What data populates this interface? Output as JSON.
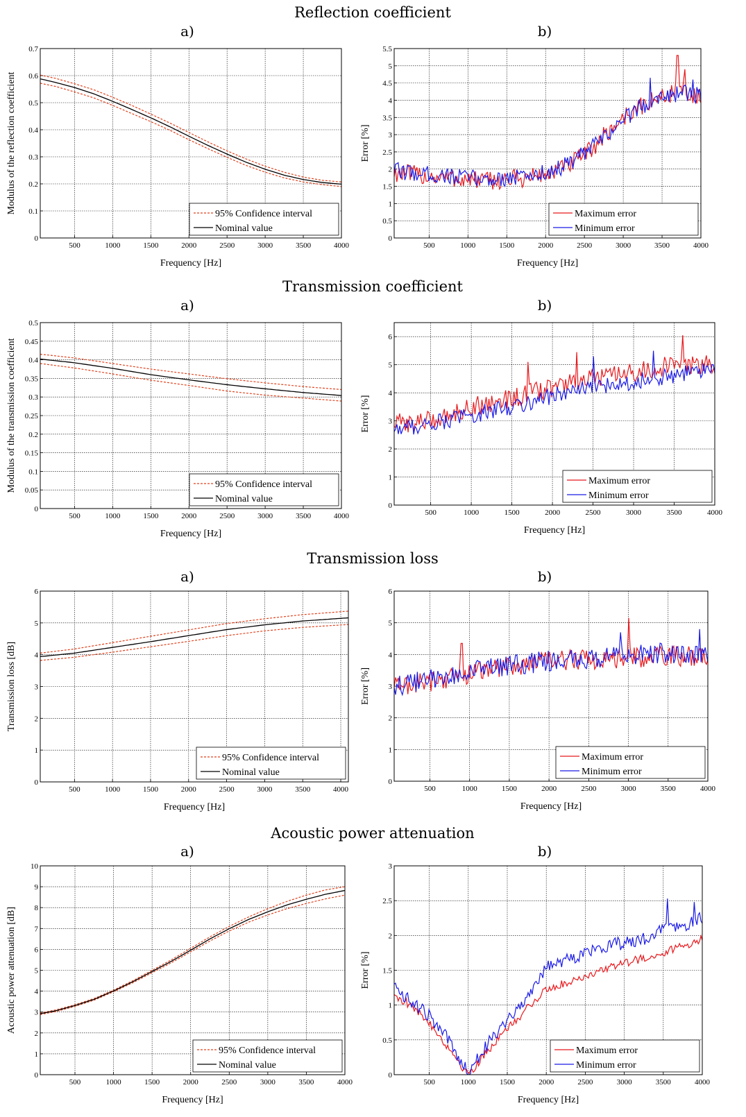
{
  "sections": [
    {
      "title": "Reflection coefficient"
    },
    {
      "title": "Transmission coefficient"
    },
    {
      "title": "Transmission loss"
    },
    {
      "title": "Acoustic power attenuation"
    }
  ],
  "panel_tags": [
    "a)",
    "b)"
  ],
  "colors": {
    "max_error": "#e8181c",
    "min_error": "#1a1ae6",
    "ci": "#e0411c",
    "nominal": "#000000"
  },
  "chart_data": [
    {
      "id": "refl-a",
      "type": "line",
      "xlabel": "Frequency [Hz]",
      "ylabel": "Modulus of the reflection coefficient",
      "xlim": [
        50,
        4000
      ],
      "ylim": [
        0,
        0.7
      ],
      "xticks": [
        500,
        1000,
        1500,
        2000,
        2500,
        3000,
        3500,
        4000
      ],
      "yticks": [
        0,
        0.1,
        0.2,
        0.3,
        0.4,
        0.5,
        0.6,
        0.7
      ],
      "grid": true,
      "legend_position": "bottom-right",
      "series": [
        {
          "name": "95% Confidence interval",
          "style": "dashed-red",
          "x": [
            50,
            250,
            500,
            750,
            1000,
            1250,
            1500,
            1750,
            2000,
            2250,
            2500,
            2750,
            3000,
            3250,
            3500,
            3750,
            4000
          ],
          "y": [
            0.602,
            0.59,
            0.57,
            0.548,
            0.52,
            0.49,
            0.458,
            0.425,
            0.39,
            0.355,
            0.322,
            0.292,
            0.265,
            0.243,
            0.225,
            0.213,
            0.207
          ]
        },
        {
          "name": "",
          "style": "dashed-red",
          "x": [
            50,
            250,
            500,
            750,
            1000,
            1250,
            1500,
            1750,
            2000,
            2250,
            2500,
            2750,
            3000,
            3250,
            3500,
            3750,
            4000
          ],
          "y": [
            0.572,
            0.56,
            0.54,
            0.518,
            0.49,
            0.46,
            0.43,
            0.398,
            0.363,
            0.33,
            0.298,
            0.268,
            0.243,
            0.222,
            0.207,
            0.197,
            0.19
          ]
        },
        {
          "name": "Nominal value",
          "style": "solid-black",
          "x": [
            50,
            250,
            500,
            750,
            1000,
            1250,
            1500,
            1750,
            2000,
            2250,
            2500,
            2750,
            3000,
            3250,
            3500,
            3750,
            4000
          ],
          "y": [
            0.588,
            0.575,
            0.556,
            0.533,
            0.505,
            0.475,
            0.444,
            0.411,
            0.376,
            0.342,
            0.31,
            0.28,
            0.254,
            0.232,
            0.216,
            0.205,
            0.199
          ]
        }
      ]
    },
    {
      "id": "refl-b",
      "type": "line",
      "xlabel": "Frequency [Hz]",
      "ylabel": "Error [%]",
      "xlim": [
        50,
        4000
      ],
      "ylim": [
        0,
        5.5
      ],
      "xticks": [
        500,
        1000,
        1500,
        2000,
        2500,
        3000,
        3500,
        4000
      ],
      "yticks": [
        0,
        0.5,
        1,
        1.5,
        2,
        2.5,
        3,
        3.5,
        4,
        4.5,
        5,
        5.5
      ],
      "grid": true,
      "legend_position": "bottom-right",
      "series": [
        {
          "name": "Maximum error",
          "style": "solid-red",
          "x": [
            50,
            250,
            500,
            750,
            1000,
            1250,
            1500,
            1750,
            2000,
            2250,
            2500,
            2750,
            3000,
            3250,
            3500,
            3750,
            4000
          ],
          "y": [
            1.9,
            1.85,
            1.8,
            1.75,
            1.7,
            1.65,
            1.7,
            1.75,
            1.85,
            2.05,
            2.4,
            2.95,
            3.5,
            3.85,
            4.1,
            4.35,
            4.0
          ],
          "noise": 0.28,
          "spikes": [
            [
              3700,
              5.3
            ],
            [
              3800,
              4.9
            ]
          ]
        },
        {
          "name": "Minimum error",
          "style": "solid-blue",
          "x": [
            50,
            250,
            500,
            750,
            1000,
            1250,
            1500,
            1750,
            2000,
            2250,
            2500,
            2750,
            3000,
            3250,
            3500,
            3750,
            4000
          ],
          "y": [
            1.95,
            1.9,
            1.85,
            1.8,
            1.75,
            1.7,
            1.75,
            1.8,
            1.9,
            2.1,
            2.45,
            2.9,
            3.45,
            3.85,
            4.15,
            4.2,
            4.15
          ],
          "noise": 0.25,
          "spikes": [
            [
              3350,
              4.65
            ],
            [
              3900,
              4.6
            ]
          ]
        }
      ]
    },
    {
      "id": "trans-a",
      "type": "line",
      "xlabel": "Frequency [Hz]",
      "ylabel": "Modulus of the transmission coefficient",
      "xlim": [
        50,
        4000
      ],
      "ylim": [
        0,
        0.5
      ],
      "xticks": [
        500,
        1000,
        1500,
        2000,
        2500,
        3000,
        3500,
        4000
      ],
      "yticks": [
        0,
        0.05,
        0.1,
        0.15,
        0.2,
        0.25,
        0.3,
        0.35,
        0.4,
        0.45,
        0.5
      ],
      "grid": true,
      "legend_position": "bottom-right",
      "series": [
        {
          "name": "95% Confidence interval",
          "style": "dashed-red",
          "x": [
            50,
            500,
            1000,
            1500,
            2000,
            2500,
            3000,
            3500,
            4000
          ],
          "y": [
            0.415,
            0.405,
            0.39,
            0.375,
            0.362,
            0.349,
            0.338,
            0.328,
            0.32
          ]
        },
        {
          "name": "",
          "style": "dashed-red",
          "x": [
            50,
            500,
            1000,
            1500,
            2000,
            2500,
            3000,
            3500,
            4000
          ],
          "y": [
            0.39,
            0.378,
            0.362,
            0.345,
            0.331,
            0.316,
            0.305,
            0.297,
            0.289
          ]
        },
        {
          "name": "Nominal value",
          "style": "solid-black",
          "x": [
            50,
            500,
            1000,
            1500,
            2000,
            2500,
            3000,
            3500,
            4000
          ],
          "y": [
            0.402,
            0.392,
            0.377,
            0.36,
            0.346,
            0.333,
            0.322,
            0.312,
            0.304
          ]
        }
      ]
    },
    {
      "id": "trans-b",
      "type": "line",
      "xlabel": "Frequency [Hz]",
      "ylabel": "Error [%]",
      "xlim": [
        50,
        4000
      ],
      "ylim": [
        0,
        6.5
      ],
      "xticks": [
        500,
        1000,
        1500,
        2000,
        2500,
        3000,
        3500,
        4000
      ],
      "yticks": [
        1,
        2,
        3,
        4,
        5,
        6
      ],
      "ytick_zero": "0",
      "grid": true,
      "legend_position": "bottom-right",
      "series": [
        {
          "name": "Maximum error",
          "style": "solid-red",
          "x": [
            50,
            500,
            1000,
            1500,
            2000,
            2500,
            3000,
            3500,
            4000
          ],
          "y": [
            2.9,
            3.0,
            3.5,
            3.8,
            4.2,
            4.5,
            4.7,
            5.0,
            5.0
          ],
          "noise": 0.35,
          "spikes": [
            [
              1700,
              5.1
            ],
            [
              2300,
              5.45
            ],
            [
              3600,
              6.05
            ]
          ]
        },
        {
          "name": "Minimum error",
          "style": "solid-blue",
          "x": [
            50,
            500,
            1000,
            1500,
            2000,
            2500,
            3000,
            3500,
            4000
          ],
          "y": [
            2.7,
            2.9,
            3.2,
            3.5,
            3.9,
            4.2,
            4.4,
            4.6,
            4.9
          ],
          "noise": 0.3,
          "spikes": [
            [
              2500,
              5.3
            ],
            [
              3250,
              5.5
            ]
          ]
        }
      ]
    },
    {
      "id": "tl-a",
      "type": "line",
      "xlabel": "Frequency [Hz]",
      "ylabel": "Transmission loss [dB]",
      "xlim": [
        50,
        4100
      ],
      "ylim": [
        0,
        6
      ],
      "xticks": [
        500,
        1000,
        1500,
        2000,
        2500,
        3000,
        3500,
        4000
      ],
      "yticks": [
        0,
        1,
        2,
        3,
        4,
        5,
        6
      ],
      "grid": true,
      "legend_position": "bottom-right",
      "series": [
        {
          "name": "95% Confidence interval",
          "style": "dashed-red",
          "x": [
            50,
            500,
            1000,
            1500,
            2000,
            2500,
            3000,
            3500,
            4100
          ],
          "y": [
            4.05,
            4.18,
            4.38,
            4.58,
            4.78,
            4.98,
            5.13,
            5.26,
            5.37
          ]
        },
        {
          "name": "",
          "style": "dashed-red",
          "x": [
            50,
            500,
            1000,
            1500,
            2000,
            2500,
            3000,
            3500,
            4100
          ],
          "y": [
            3.82,
            3.92,
            4.08,
            4.25,
            4.42,
            4.6,
            4.75,
            4.86,
            4.95
          ]
        },
        {
          "name": "Nominal value",
          "style": "solid-black",
          "x": [
            50,
            500,
            1000,
            1500,
            2000,
            2500,
            3000,
            3500,
            4100
          ],
          "y": [
            3.94,
            4.05,
            4.23,
            4.41,
            4.6,
            4.79,
            4.94,
            5.06,
            5.16
          ]
        }
      ]
    },
    {
      "id": "tl-b",
      "type": "line",
      "xlabel": "Frequency [Hz]",
      "ylabel": "Error [%]",
      "xlim": [
        50,
        4000
      ],
      "ylim": [
        0,
        6
      ],
      "xticks": [
        500,
        1000,
        1500,
        2000,
        2500,
        3000,
        3500,
        4000
      ],
      "yticks": [
        0,
        1,
        2,
        3,
        4,
        5,
        6
      ],
      "grid": true,
      "legend_position": "bottom-right",
      "series": [
        {
          "name": "Maximum error",
          "style": "solid-red",
          "x": [
            50,
            500,
            1000,
            1500,
            2000,
            2500,
            3000,
            3500,
            4000
          ],
          "y": [
            3.0,
            3.15,
            3.4,
            3.65,
            3.8,
            3.85,
            3.9,
            3.95,
            3.95
          ],
          "noise": 0.33,
          "spikes": [
            [
              900,
              4.35
            ],
            [
              3010,
              5.15
            ]
          ]
        },
        {
          "name": "Minimum error",
          "style": "solid-blue",
          "x": [
            50,
            500,
            1000,
            1500,
            2000,
            2500,
            3000,
            3500,
            4000
          ],
          "y": [
            3.0,
            3.2,
            3.45,
            3.65,
            3.8,
            3.85,
            3.95,
            4.05,
            4.0
          ],
          "noise": 0.33,
          "spikes": [
            [
              2900,
              4.7
            ],
            [
              3900,
              4.8
            ]
          ]
        }
      ]
    },
    {
      "id": "apa-a",
      "type": "line",
      "xlabel": "Frequency [Hz]",
      "ylabel": "Acoustic power attenuation [dB]",
      "xlim": [
        50,
        4000
      ],
      "ylim": [
        0,
        10
      ],
      "xticks": [
        500,
        1000,
        1500,
        2000,
        2500,
        3000,
        3500,
        4000
      ],
      "yticks": [
        0,
        1,
        2,
        3,
        4,
        5,
        6,
        7,
        8,
        9,
        10
      ],
      "grid": true,
      "legend_position": "bottom-right",
      "series": [
        {
          "name": "95% Confidence interval",
          "style": "dashed-red",
          "x": [
            50,
            250,
            500,
            750,
            1000,
            1250,
            1500,
            1750,
            2000,
            2250,
            2500,
            2750,
            3000,
            3250,
            3500,
            3750,
            4000
          ],
          "y": [
            2.95,
            3.1,
            3.35,
            3.65,
            4.05,
            4.5,
            5.0,
            5.5,
            6.05,
            6.6,
            7.1,
            7.55,
            7.95,
            8.3,
            8.6,
            8.85,
            9.0
          ]
        },
        {
          "name": "",
          "style": "dashed-red",
          "x": [
            50,
            250,
            500,
            750,
            1000,
            1250,
            1500,
            1750,
            2000,
            2250,
            2500,
            2750,
            3000,
            3250,
            3500,
            3750,
            4000
          ],
          "y": [
            2.88,
            3.02,
            3.27,
            3.57,
            3.97,
            4.4,
            4.88,
            5.36,
            5.88,
            6.4,
            6.88,
            7.3,
            7.65,
            7.95,
            8.2,
            8.42,
            8.6
          ]
        },
        {
          "name": "Nominal value",
          "style": "solid-black",
          "x": [
            50,
            250,
            500,
            750,
            1000,
            1250,
            1500,
            1750,
            2000,
            2250,
            2500,
            2750,
            3000,
            3250,
            3500,
            3750,
            4000
          ],
          "y": [
            2.92,
            3.06,
            3.31,
            3.61,
            4.01,
            4.45,
            4.94,
            5.43,
            5.96,
            6.5,
            6.99,
            7.43,
            7.8,
            8.13,
            8.4,
            8.64,
            8.82
          ]
        }
      ]
    },
    {
      "id": "apa-b",
      "type": "line",
      "xlabel": "Frequency [Hz]",
      "ylabel": "Error [%]",
      "xlim": [
        50,
        4000
      ],
      "ylim": [
        0,
        3
      ],
      "xticks": [
        500,
        1000,
        1500,
        2000,
        2500,
        3000,
        3500,
        4000
      ],
      "yticks": [
        0,
        0.5,
        1,
        1.5,
        2,
        2.5,
        3
      ],
      "grid": true,
      "legend_position": "bottom-right",
      "series": [
        {
          "name": "Maximum error",
          "style": "solid-red",
          "x": [
            50,
            250,
            500,
            750,
            1000,
            1250,
            1500,
            1750,
            2000,
            2250,
            2500,
            2750,
            3000,
            3250,
            3500,
            3750,
            4000
          ],
          "y": [
            1.15,
            1.0,
            0.75,
            0.38,
            0.0,
            0.35,
            0.65,
            0.95,
            1.22,
            1.32,
            1.42,
            1.52,
            1.6,
            1.68,
            1.75,
            1.85,
            1.95
          ],
          "noise": 0.06,
          "spikes": []
        },
        {
          "name": "Minimum error",
          "style": "solid-blue",
          "x": [
            50,
            250,
            500,
            750,
            1000,
            1250,
            1500,
            1750,
            2000,
            2250,
            2500,
            2750,
            3000,
            3250,
            3500,
            3750,
            4000
          ],
          "y": [
            1.3,
            1.05,
            0.85,
            0.48,
            0.05,
            0.45,
            0.8,
            1.1,
            1.55,
            1.65,
            1.75,
            1.85,
            1.9,
            1.95,
            2.1,
            2.15,
            2.25
          ],
          "noise": 0.1,
          "spikes": [
            [
              3550,
              2.53
            ],
            [
              3900,
              2.48
            ]
          ]
        }
      ]
    }
  ]
}
